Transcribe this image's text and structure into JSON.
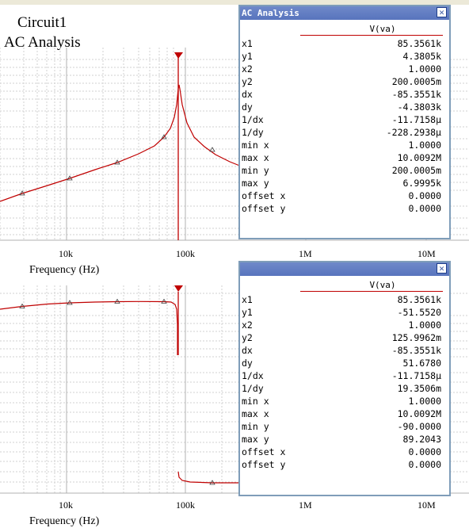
{
  "window": {
    "title_line1": "Circuit1",
    "title_line2": "AC Analysis"
  },
  "colors": {
    "trace": "#c00000",
    "grid": "#c8c8c8",
    "window_title_bg": "#5874bd"
  },
  "x_axis": {
    "label": "Frequency (Hz)",
    "ticks": [
      "10k",
      "100k",
      "1M",
      "10M"
    ]
  },
  "top_window": {
    "title": "AC Analysis",
    "column": "V(va)",
    "rows": [
      {
        "k": "x1",
        "v": "85.3561k"
      },
      {
        "k": "y1",
        "v": "4.3805k"
      },
      {
        "k": "x2",
        "v": "1.0000"
      },
      {
        "k": "y2",
        "v": "200.0005m"
      },
      {
        "k": "dx",
        "v": "-85.3551k"
      },
      {
        "k": "dy",
        "v": "-4.3803k"
      },
      {
        "k": "1/dx",
        "v": "-11.7158µ"
      },
      {
        "k": "1/dy",
        "v": "-228.2938µ"
      },
      {
        "k": "min x",
        "v": "1.0000"
      },
      {
        "k": "max x",
        "v": "10.0092M"
      },
      {
        "k": "min y",
        "v": "200.0005m"
      },
      {
        "k": "max y",
        "v": "6.9995k"
      },
      {
        "k": "offset x",
        "v": "0.0000"
      },
      {
        "k": "offset y",
        "v": "0.0000"
      }
    ]
  },
  "bottom_window": {
    "column": "V(va)",
    "rows": [
      {
        "k": "x1",
        "v": "85.3561k"
      },
      {
        "k": "y1",
        "v": "-51.5520"
      },
      {
        "k": "x2",
        "v": "1.0000"
      },
      {
        "k": "y2",
        "v": "125.9962m"
      },
      {
        "k": "dx",
        "v": "-85.3551k"
      },
      {
        "k": "dy",
        "v": "51.6780"
      },
      {
        "k": "1/dx",
        "v": "-11.7158µ"
      },
      {
        "k": "1/dy",
        "v": "19.3506m"
      },
      {
        "k": "min x",
        "v": "1.0000"
      },
      {
        "k": "max x",
        "v": "10.0092M"
      },
      {
        "k": "min y",
        "v": "-90.0000"
      },
      {
        "k": "max y",
        "v": "89.2043"
      },
      {
        "k": "offset x",
        "v": "0.0000"
      },
      {
        "k": "offset y",
        "v": "0.0000"
      }
    ]
  }
}
